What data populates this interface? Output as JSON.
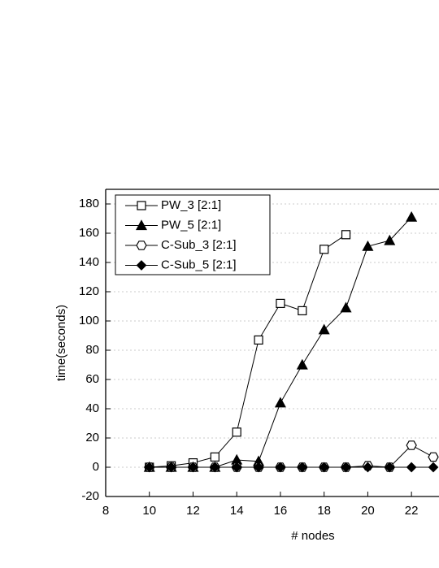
{
  "chart_data": {
    "type": "line",
    "x_label": "# nodes",
    "y_label": "time(seconds)",
    "xlim": [
      8,
      23.26
    ],
    "ylim": [
      -20,
      190
    ],
    "xticks": [
      8,
      10,
      12,
      14,
      16,
      18,
      20,
      22
    ],
    "yticks": [
      -20,
      0,
      20,
      40,
      60,
      80,
      100,
      120,
      140,
      160,
      180
    ],
    "grid": true,
    "legend": "top-left",
    "series": [
      {
        "name": "PW_3 [2:1]",
        "color": "#000000",
        "marker": "square",
        "filled": false,
        "x": [
          10,
          11,
          12,
          13,
          14,
          15,
          16,
          17,
          18,
          19
        ],
        "values": [
          0,
          1,
          3,
          7,
          24,
          87,
          112,
          107,
          149,
          159
        ]
      },
      {
        "name": "PW_5 [2:1]",
        "color": "#000000",
        "marker": "triangle",
        "filled": true,
        "x": [
          10,
          11,
          12,
          13,
          14,
          15,
          16,
          17,
          18,
          19,
          20,
          21,
          22
        ],
        "values": [
          0,
          0,
          0,
          0,
          5,
          4,
          44,
          70,
          94,
          109,
          151,
          155,
          171
        ]
      },
      {
        "name": "C-Sub_3 [2:1]",
        "color": "#000000",
        "marker": "hexagon",
        "filled": false,
        "x": [
          10,
          11,
          12,
          13,
          14,
          15,
          16,
          17,
          18,
          19,
          20,
          21,
          22,
          23
        ],
        "values": [
          0,
          0,
          0,
          0,
          0,
          0,
          0,
          0,
          0,
          0,
          1,
          0,
          15,
          7
        ]
      },
      {
        "name": "C-Sub_5 [2:1]",
        "color": "#000000",
        "marker": "diamond",
        "filled": true,
        "x": [
          10,
          11,
          12,
          13,
          14,
          15,
          16,
          17,
          18,
          19,
          20,
          21,
          22,
          23
        ],
        "values": [
          0,
          0,
          0,
          0,
          0,
          0,
          0,
          0,
          0,
          0,
          0,
          0,
          0,
          0
        ]
      }
    ]
  }
}
